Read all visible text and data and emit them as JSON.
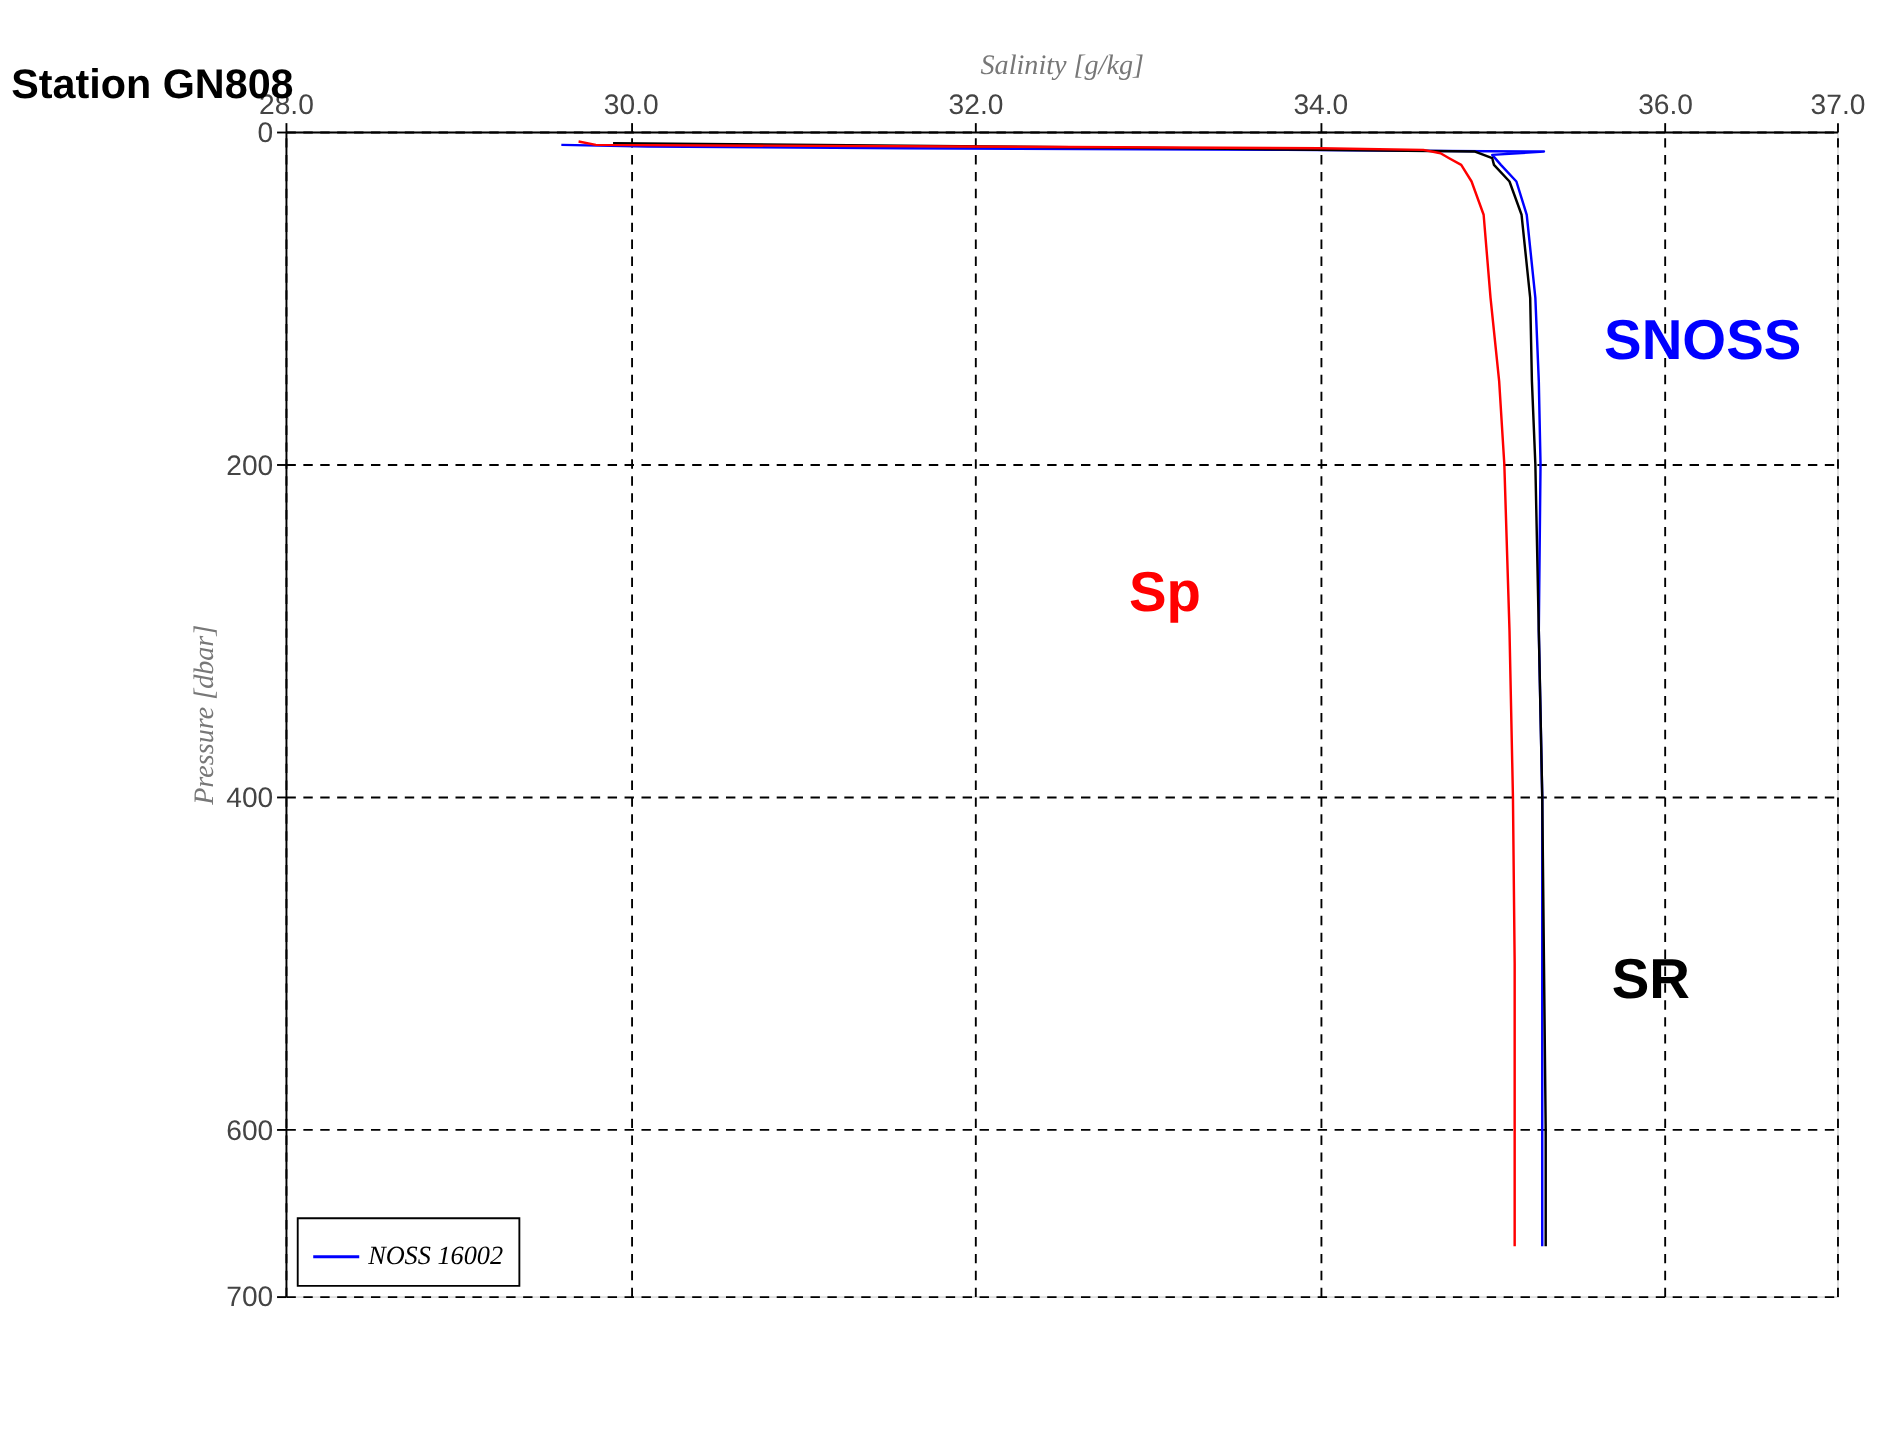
{
  "chart_data": {
    "type": "line",
    "title": "Station GN808",
    "xlabel": "Salinity [g/kg]",
    "ylabel": "Pressure [dbar]",
    "xlim": [
      28,
      37
    ],
    "xticks": [
      {
        "value": 28,
        "label": "28.0"
      },
      {
        "value": 30,
        "label": "30.0"
      },
      {
        "value": 32,
        "label": "32.0"
      },
      {
        "value": 34,
        "label": "34.0"
      },
      {
        "value": 36,
        "label": "36.0"
      },
      {
        "value": 37,
        "label": "37.0"
      }
    ],
    "ylim": [
      700,
      0
    ],
    "yticks": [
      0,
      200,
      400,
      600,
      700
    ],
    "grid": true,
    "legend": "bottom left",
    "marker": "none",
    "line_style": "solid",
    "series": [
      {
        "name": "NOSS 16002",
        "color": "#0000ff",
        "x": [
          29.6,
          30.1,
          31.6,
          33.8,
          35.3,
          35.0,
          35.05,
          35.14,
          35.2,
          35.25,
          35.27,
          35.28,
          35.27,
          35.29,
          35.29,
          35.29,
          35.29
        ],
        "values": [
          8,
          9,
          10,
          11,
          12,
          14,
          20,
          30,
          50,
          100,
          150,
          200,
          300,
          400,
          500,
          600,
          670
        ]
      },
      {
        "color": "#000000",
        "x": [
          29.9,
          31.1,
          33.2,
          34.9,
          35.0,
          35.01,
          35.1,
          35.17,
          35.22,
          35.23,
          35.25,
          35.27,
          35.29,
          35.3,
          35.31,
          35.31
        ],
        "values": [
          7,
          8,
          10,
          12,
          16,
          20,
          30,
          50,
          100,
          150,
          200,
          300,
          400,
          500,
          600,
          670
        ]
      },
      {
        "color": "#ff0000",
        "x": [
          29.7,
          29.8,
          34.0,
          34.6,
          34.7,
          34.75,
          34.82,
          34.88,
          34.95,
          34.99,
          35.04,
          35.07,
          35.1,
          35.12,
          35.13,
          35.13,
          35.13
        ],
        "values": [
          6,
          8,
          10,
          11,
          13,
          16,
          20,
          30,
          50,
          100,
          150,
          200,
          300,
          400,
          500,
          600,
          670
        ]
      }
    ],
    "annotations": [
      "SNOSS",
      "SR",
      "Sp"
    ]
  }
}
